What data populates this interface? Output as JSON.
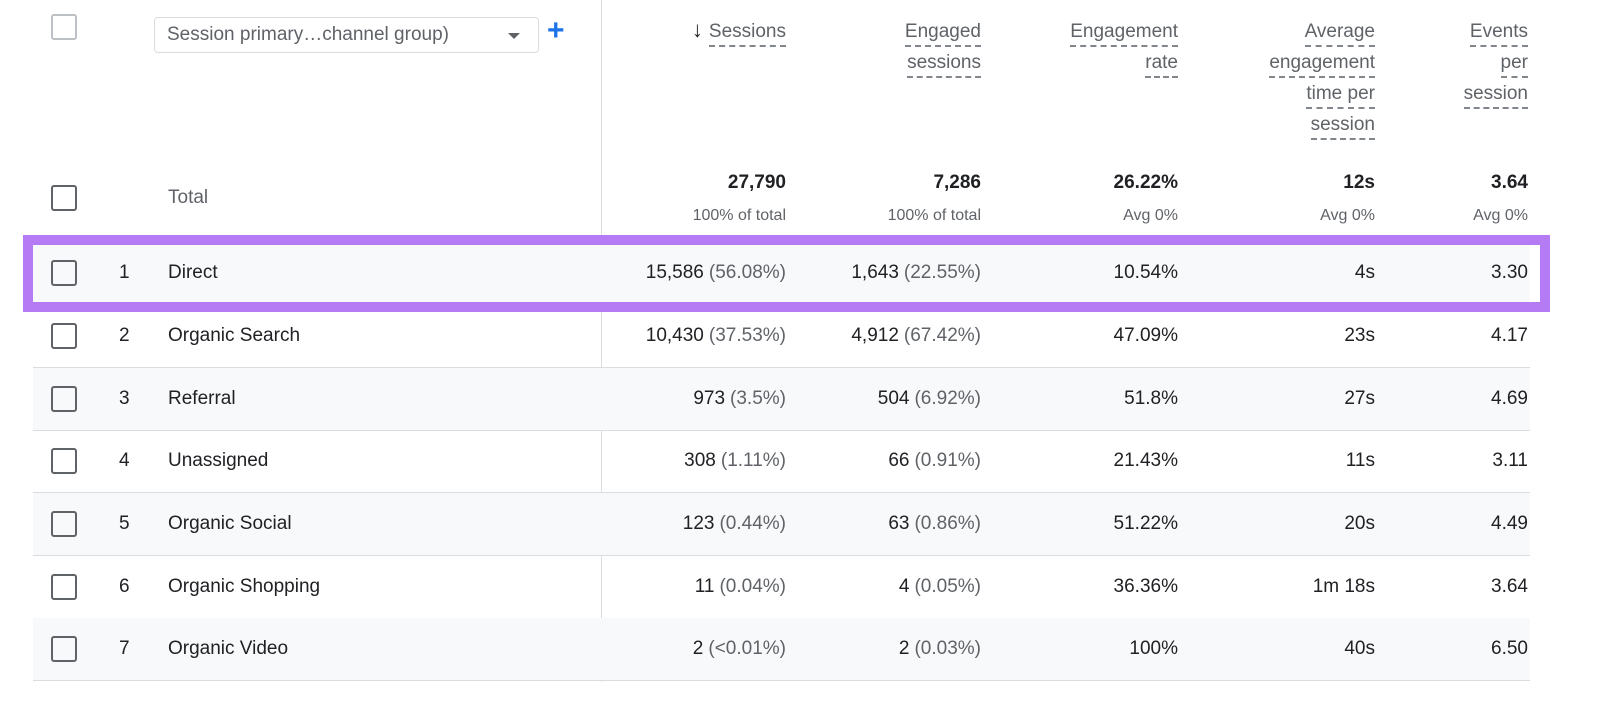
{
  "dimension_selector": {
    "label": "Session primary…channel group)",
    "add_label": "+"
  },
  "columns": [
    {
      "label1": "Sessions",
      "lines": [
        "Sessions"
      ],
      "sorted": true
    },
    {
      "lines": [
        "Engaged",
        "sessions"
      ]
    },
    {
      "lines": [
        "Engagement",
        "rate"
      ]
    },
    {
      "lines": [
        "Average",
        "engagement",
        "time per",
        "session"
      ]
    },
    {
      "lines": [
        "Events",
        "per",
        "session"
      ]
    }
  ],
  "total": {
    "label": "Total",
    "values": [
      "27,790",
      "7,286",
      "26.22%",
      "12s",
      "3.64"
    ],
    "subs": [
      "100% of total",
      "100% of total",
      "Avg 0%",
      "Avg 0%",
      "Avg 0%"
    ]
  },
  "rows": [
    {
      "rank": "1",
      "name": "Direct",
      "sessions": "15,586",
      "sessions_pct": "(56.08%)",
      "engaged": "1,643",
      "engaged_pct": "(22.55%)",
      "rate": "10.54%",
      "time": "4s",
      "events": "3.30"
    },
    {
      "rank": "2",
      "name": "Organic Search",
      "sessions": "10,430",
      "sessions_pct": "(37.53%)",
      "engaged": "4,912",
      "engaged_pct": "(67.42%)",
      "rate": "47.09%",
      "time": "23s",
      "events": "4.17"
    },
    {
      "rank": "3",
      "name": "Referral",
      "sessions": "973",
      "sessions_pct": "(3.5%)",
      "engaged": "504",
      "engaged_pct": "(6.92%)",
      "rate": "51.8%",
      "time": "27s",
      "events": "4.69"
    },
    {
      "rank": "4",
      "name": "Unassigned",
      "sessions": "308",
      "sessions_pct": "(1.11%)",
      "engaged": "66",
      "engaged_pct": "(0.91%)",
      "rate": "21.43%",
      "time": "11s",
      "events": "3.11"
    },
    {
      "rank": "5",
      "name": "Organic Social",
      "sessions": "123",
      "sessions_pct": "(0.44%)",
      "engaged": "63",
      "engaged_pct": "(0.86%)",
      "rate": "51.22%",
      "time": "20s",
      "events": "4.49"
    },
    {
      "rank": "6",
      "name": "Organic Shopping",
      "sessions": "11",
      "sessions_pct": "(0.04%)",
      "engaged": "4",
      "engaged_pct": "(0.05%)",
      "rate": "36.36%",
      "time": "1m 18s",
      "events": "3.64"
    },
    {
      "rank": "7",
      "name": "Organic Video",
      "sessions": "2",
      "sessions_pct": "(<0.01%)",
      "engaged": "2",
      "engaged_pct": "(0.03%)",
      "rate": "100%",
      "time": "40s",
      "events": "6.50"
    }
  ],
  "highlight_color": "#b57bf5",
  "accent": "#1a73e8"
}
